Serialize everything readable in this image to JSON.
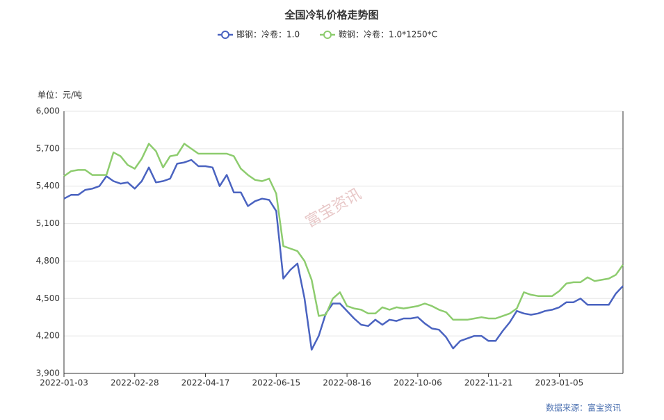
{
  "chart_data": {
    "type": "line",
    "title": "全国冷轧价格走势图",
    "unit_label": "单位：元/吨",
    "source": "数据来源：富宝资讯",
    "watermark": "富宝资讯",
    "categories": [
      "2022-01-03",
      null,
      null,
      null,
      null,
      null,
      null,
      null,
      null,
      null,
      "2022-02-28",
      null,
      null,
      null,
      null,
      null,
      null,
      null,
      null,
      null,
      "2022-04-17",
      null,
      null,
      null,
      null,
      null,
      null,
      null,
      null,
      null,
      "2022-06-15",
      null,
      null,
      null,
      null,
      null,
      null,
      null,
      null,
      null,
      "2022-08-16",
      null,
      null,
      null,
      null,
      null,
      null,
      null,
      null,
      null,
      "2022-10-06",
      null,
      null,
      null,
      null,
      null,
      null,
      null,
      null,
      null,
      "2022-11-21",
      null,
      null,
      null,
      null,
      null,
      null,
      null,
      null,
      null,
      "2023-01-05",
      null,
      null,
      null,
      null,
      null,
      null,
      null,
      null,
      null
    ],
    "series": [
      {
        "name": "邯钢：冷卷：1.0",
        "color": "#4a63c0",
        "values": [
          5300,
          5330,
          5330,
          5370,
          5380,
          5400,
          5480,
          5440,
          5420,
          5430,
          5380,
          5440,
          5550,
          5430,
          5440,
          5460,
          5580,
          5590,
          5610,
          5560,
          5560,
          5550,
          5400,
          5490,
          5350,
          5350,
          5240,
          5280,
          5300,
          5290,
          5200,
          4660,
          4730,
          4780,
          4500,
          4090,
          4200,
          4380,
          4460,
          4460,
          4400,
          4340,
          4290,
          4280,
          4330,
          4290,
          4330,
          4320,
          4340,
          4340,
          4350,
          4300,
          4260,
          4250,
          4190,
          4100,
          4160,
          4180,
          4200,
          4200,
          4160,
          4160,
          4240,
          4310,
          4400,
          4380,
          4370,
          4380,
          4400,
          4410,
          4430,
          4470,
          4470,
          4500,
          4450,
          4450,
          4450,
          4450,
          4540,
          4600
        ]
      },
      {
        "name": "鞍钢：冷卷：1.0*1250*C",
        "color": "#8dcc6e",
        "values": [
          5480,
          5520,
          5530,
          5530,
          5490,
          5490,
          5490,
          5670,
          5640,
          5570,
          5540,
          5620,
          5740,
          5680,
          5550,
          5640,
          5650,
          5740,
          5700,
          5660,
          5660,
          5660,
          5660,
          5660,
          5640,
          5540,
          5490,
          5450,
          5440,
          5460,
          5340,
          4920,
          4900,
          4880,
          4800,
          4650,
          4360,
          4370,
          4500,
          4550,
          4440,
          4420,
          4410,
          4380,
          4380,
          4430,
          4410,
          4430,
          4420,
          4430,
          4440,
          4460,
          4440,
          4410,
          4390,
          4330,
          4330,
          4330,
          4340,
          4350,
          4340,
          4340,
          4360,
          4380,
          4420,
          4550,
          4530,
          4520,
          4520,
          4520,
          4560,
          4620,
          4630,
          4630,
          4670,
          4640,
          4650,
          4660,
          4690,
          4770
        ]
      }
    ],
    "ylim": [
      3900,
      6000
    ],
    "yticks": [
      {
        "value": 3900,
        "label": "3,900"
      },
      {
        "value": 4200,
        "label": "4,200"
      },
      {
        "value": 4500,
        "label": "4,500"
      },
      {
        "value": 4800,
        "label": "4,800"
      },
      {
        "value": 5100,
        "label": "5,100"
      },
      {
        "value": 5400,
        "label": "5,400"
      },
      {
        "value": 5700,
        "label": "5,700"
      },
      {
        "value": 6000,
        "label": "6,000"
      }
    ],
    "grid": true
  }
}
